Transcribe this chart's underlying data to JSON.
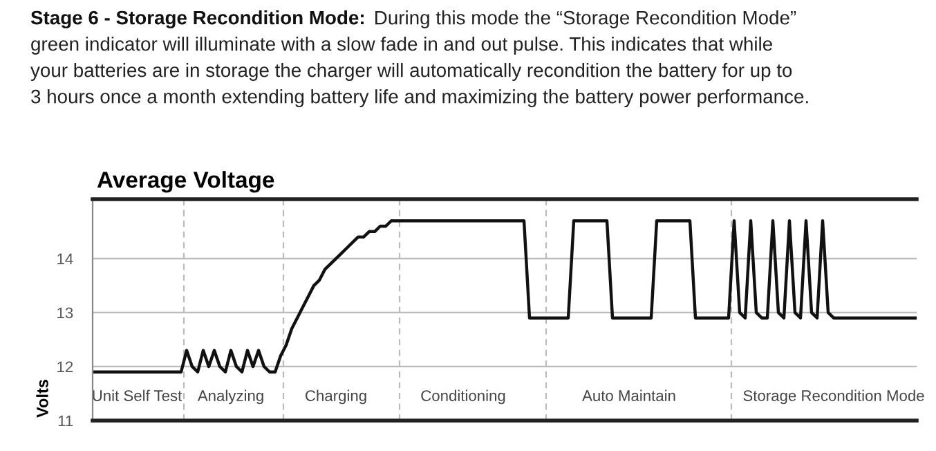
{
  "chart_data": {
    "type": "line",
    "title": "Average Voltage",
    "ylabel": "Volts",
    "annotations": [
      "Stage 6 - Storage Recondition Mode:",
      "During this mode the “Storage Recondition Mode”",
      "green indicator will illuminate with a slow fade in and out pulse. This indicates that while",
      "your batteries are in storage the charger will automatically recondition the battery for up to",
      "3 hours once a month extending battery life and maximizing the battery power performance."
    ],
    "ylim": [
      11,
      15.1
    ],
    "yticks": [
      11,
      12,
      13,
      14
    ],
    "categories": [
      null,
      null,
      null,
      null,
      null,
      null,
      null,
      null,
      "Unit Self Test",
      null,
      null,
      null,
      null,
      null,
      null,
      null,
      null,
      null,
      null,
      null,
      null,
      null,
      null,
      null,
      null,
      "Analyzing",
      null,
      null,
      null,
      null,
      null,
      null,
      null,
      null,
      null,
      null,
      null,
      null,
      null,
      null,
      null,
      null,
      null,
      null,
      "Charging",
      null,
      null,
      null,
      null,
      null,
      null,
      null,
      null,
      null,
      null,
      null,
      null,
      null,
      null,
      null,
      null,
      null,
      null,
      null,
      null,
      null,
      null,
      "Conditioning",
      null,
      null,
      null,
      null,
      null,
      null,
      null,
      null,
      null,
      null,
      null,
      null,
      null,
      null,
      null,
      null,
      null,
      null,
      null,
      null,
      null,
      null,
      null,
      null,
      null,
      null,
      null,
      null,
      null,
      "Auto Maintain",
      null,
      null,
      null,
      null,
      null,
      null,
      null,
      null,
      null,
      null,
      null,
      null,
      null,
      null,
      null,
      null,
      null,
      null,
      null,
      null,
      null,
      null,
      null,
      null,
      null,
      null,
      null,
      null,
      null,
      null,
      null,
      null,
      null,
      null,
      null,
      null,
      "Storage Recondition Mode",
      null,
      null,
      null,
      null,
      null,
      null,
      null,
      null,
      null,
      null,
      null,
      null,
      null,
      null,
      null
    ],
    "grid": "y",
    "series": [
      {
        "color": "#111111",
        "values": [
          11.9,
          11.9,
          11.9,
          11.9,
          11.9,
          11.9,
          11.9,
          11.9,
          11.9,
          11.9,
          11.9,
          11.9,
          11.9,
          11.9,
          11.9,
          11.9,
          11.9,
          12.3,
          12.0,
          11.9,
          12.3,
          12.0,
          12.3,
          12.0,
          11.9,
          12.3,
          12.0,
          11.9,
          12.3,
          12.0,
          12.3,
          12.0,
          11.9,
          11.9,
          12.2,
          12.4,
          12.7,
          12.9,
          13.1,
          13.3,
          13.5,
          13.6,
          13.8,
          13.9,
          14.0,
          14.1,
          14.2,
          14.3,
          14.4,
          14.4,
          14.5,
          14.5,
          14.6,
          14.6,
          14.7,
          14.7,
          14.7,
          14.7,
          14.7,
          14.7,
          14.7,
          14.7,
          14.7,
          14.7,
          14.7,
          14.7,
          14.7,
          14.7,
          14.7,
          14.7,
          14.7,
          14.7,
          14.7,
          14.7,
          14.7,
          14.7,
          14.7,
          14.7,
          14.7,
          12.9,
          12.9,
          12.9,
          12.9,
          12.9,
          12.9,
          12.9,
          12.9,
          14.7,
          14.7,
          14.7,
          14.7,
          14.7,
          14.7,
          14.7,
          12.9,
          12.9,
          12.9,
          12.9,
          12.9,
          12.9,
          12.9,
          12.9,
          14.7,
          14.7,
          14.7,
          14.7,
          14.7,
          14.7,
          14.7,
          12.9,
          12.9,
          12.9,
          12.9,
          12.9,
          12.9,
          12.9,
          14.7,
          13.0,
          12.9,
          14.7,
          13.0,
          12.9,
          12.9,
          14.7,
          13.0,
          12.9,
          14.7,
          13.0,
          12.9,
          14.7,
          13.0,
          12.9,
          14.7,
          13.0,
          12.9,
          12.9,
          12.9,
          12.9,
          12.9,
          12.9,
          12.9,
          12.9,
          12.9,
          12.9,
          12.9,
          12.9,
          12.9,
          12.9,
          12.9,
          12.9
        ]
      }
    ]
  }
}
